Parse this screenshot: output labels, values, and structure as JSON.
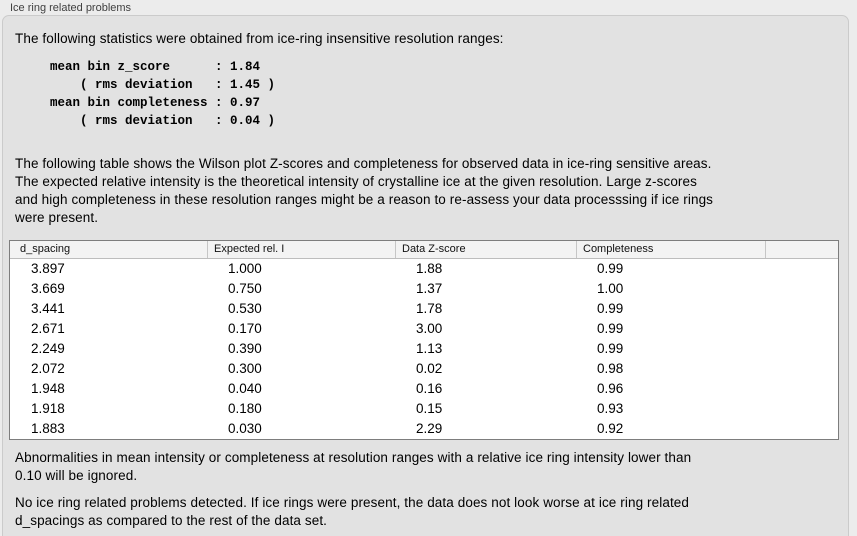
{
  "window": {
    "title": "Ice ring related problems"
  },
  "panel": {
    "intro": "The following statistics were obtained from ice-ring insensitive resolution ranges:",
    "stats_block": [
      "mean bin z_score      : 1.84",
      "    ( rms deviation   : 1.45 )",
      "mean bin completeness : 0.97",
      "    ( rms deviation   : 0.04 )"
    ],
    "table_description": [
      "The following table shows the Wilson plot Z-scores and completeness for observed data in ice-ring sensitive areas.",
      "The expected relative intensity is the theoretical intensity of crystalline ice at the given resolution. Large z-scores",
      "and high completeness in these resolution ranges might be a reason to re-assess your data processsing if ice rings",
      "were present."
    ],
    "ignore_note": [
      "Abnormalities in mean intensity or completeness at resolution ranges with a relative ice ring intensity lower than",
      "0.10 will be ignored."
    ],
    "conclusion": [
      "No ice ring related problems detected. If ice rings were present, the data does not look worse at ice ring related",
      "d_spacings as compared to the rest of the data set."
    ]
  },
  "table": {
    "columns": [
      "d_spacing",
      "Expected rel. I",
      "Data Z-score",
      "Completeness"
    ],
    "rows": [
      [
        "3.897",
        "1.000",
        "1.88",
        "0.99"
      ],
      [
        "3.669",
        "0.750",
        "1.37",
        "1.00"
      ],
      [
        "3.441",
        "0.530",
        "1.78",
        "0.99"
      ],
      [
        "2.671",
        "0.170",
        "3.00",
        "0.99"
      ],
      [
        "2.249",
        "0.390",
        "1.13",
        "0.99"
      ],
      [
        "2.072",
        "0.300",
        "0.02",
        "0.98"
      ],
      [
        "1.948",
        "0.040",
        "0.16",
        "0.96"
      ],
      [
        "1.918",
        "0.180",
        "0.15",
        "0.93"
      ],
      [
        "1.883",
        "0.030",
        "2.29",
        "0.92"
      ]
    ]
  },
  "colors": {
    "page_bg": "#ececec",
    "panel_bg": "#e2e2e2",
    "panel_border": "#cbcbcb",
    "table_border": "#7d7d7d",
    "table_header_bg": "#f3f3f3",
    "text": "#000000",
    "title_text": "#3f3f3f"
  }
}
